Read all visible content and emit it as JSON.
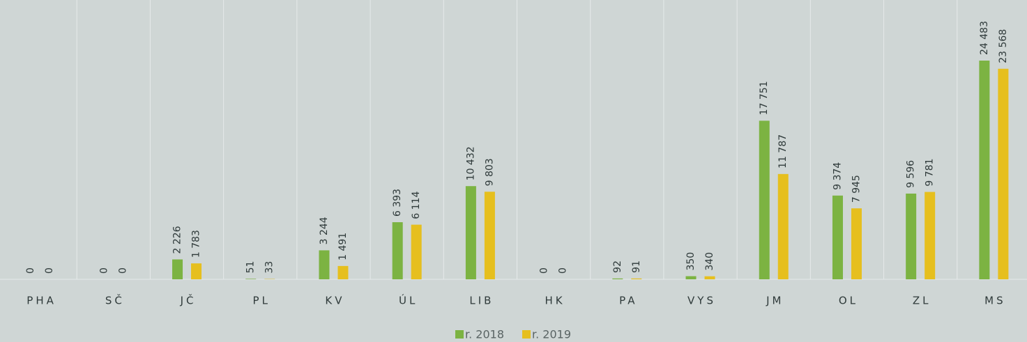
{
  "chart_data": {
    "type": "bar",
    "categories": [
      "PHA",
      "SČ",
      "JČ",
      "PL",
      "KV",
      "ÚL",
      "LIB",
      "HK",
      "PA",
      "VYS",
      "JM",
      "OL",
      "ZL",
      "MS"
    ],
    "series": [
      {
        "name": "r. 2018",
        "color": "#7cb342",
        "values": [
          0,
          0,
          2226,
          51,
          3244,
          6393,
          10432,
          0,
          92,
          350,
          17751,
          9374,
          9596,
          24483
        ],
        "value_labels": [
          "0",
          "0",
          "2 226",
          "51",
          "3 244",
          "6 393",
          "10 432",
          "0",
          "92",
          "350",
          "17 751",
          "9 374",
          "9 596",
          "24 483"
        ]
      },
      {
        "name": "r. 2019",
        "color": "#e6bf1e",
        "values": [
          0,
          0,
          1783,
          33,
          1491,
          6114,
          9803,
          0,
          91,
          340,
          11787,
          7945,
          9781,
          23568
        ],
        "value_labels": [
          "0",
          "0",
          "1 783",
          "33",
          "1 491",
          "6 114",
          "9 803",
          "0",
          "91",
          "340",
          "11 787",
          "7 945",
          "9 781",
          "23 568"
        ]
      }
    ],
    "legend": "bottom"
  }
}
